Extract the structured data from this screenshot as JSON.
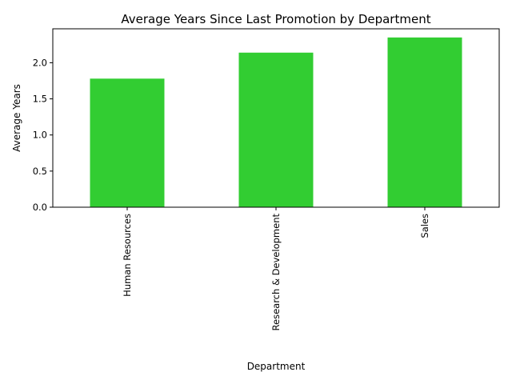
{
  "chart_data": {
    "type": "bar",
    "title": "Average Years Since Last Promotion by Department",
    "xlabel": "Department",
    "ylabel": "Average Years",
    "categories": [
      "Human Resources",
      "Research & Development",
      "Sales"
    ],
    "values": [
      1.78,
      2.14,
      2.35
    ],
    "ylim": [
      0,
      2.47
    ],
    "yticks": [
      0.0,
      0.5,
      1.0,
      1.5,
      2.0
    ],
    "ytick_labels": [
      "0.0",
      "0.5",
      "1.0",
      "1.5",
      "2.0"
    ],
    "bar_color": "#32cd32",
    "grid": false,
    "legend": "none"
  }
}
